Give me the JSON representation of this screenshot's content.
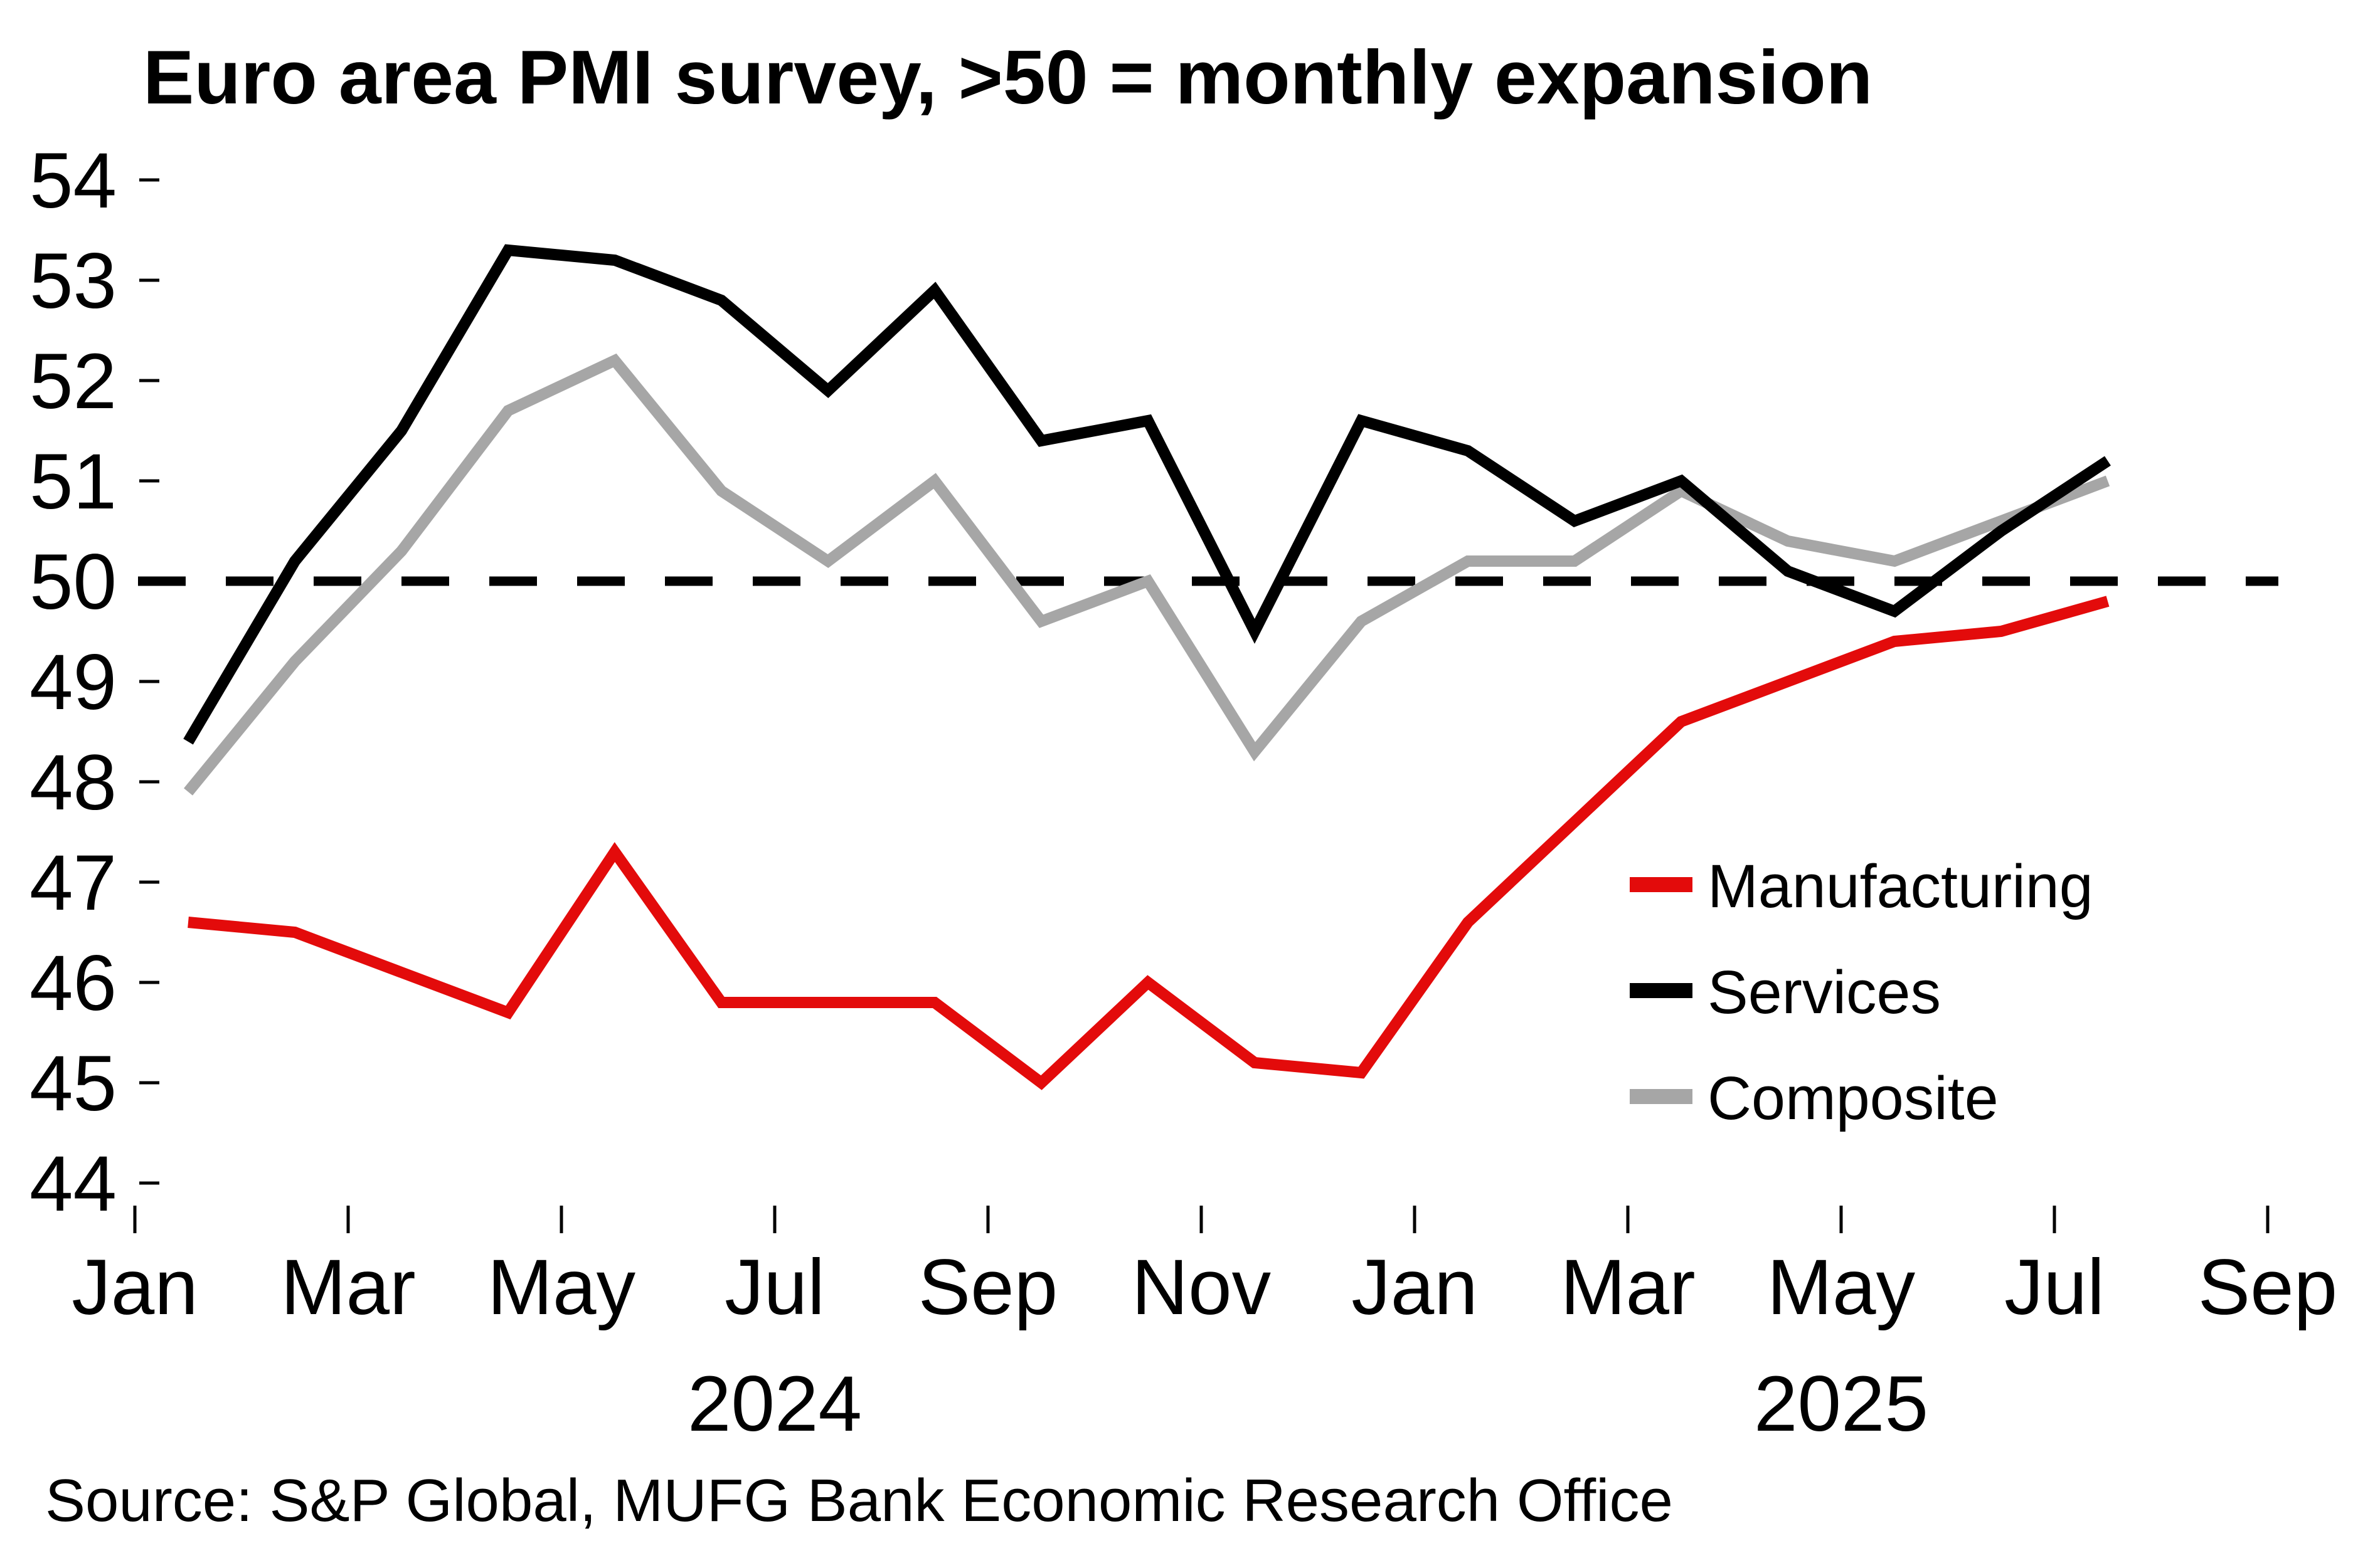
{
  "chart_data": {
    "type": "line",
    "title": "Euro area PMI survey, >50 = monthly expansion",
    "x": [
      "Jan 2024",
      "Feb 2024",
      "Mar 2024",
      "Apr 2024",
      "May 2024",
      "Jun 2024",
      "Jul 2024",
      "Aug 2024",
      "Sep 2024",
      "Oct 2024",
      "Nov 2024",
      "Dec 2024",
      "Jan 2025",
      "Feb 2025",
      "Mar 2025",
      "Apr 2025",
      "May 2025",
      "Jun 2025",
      "Jul 2025"
    ],
    "series": [
      {
        "name": "Manufacturing",
        "color": "#e30b0b",
        "values": [
          46.6,
          46.5,
          46.1,
          45.7,
          47.3,
          45.8,
          45.8,
          45.8,
          45.0,
          46.0,
          45.2,
          45.1,
          46.6,
          47.6,
          48.6,
          49.0,
          49.4,
          49.5,
          49.8
        ]
      },
      {
        "name": "Services",
        "color": "#000000",
        "values": [
          48.4,
          50.2,
          51.5,
          53.3,
          53.2,
          52.8,
          51.9,
          52.9,
          51.4,
          51.6,
          49.5,
          51.6,
          51.3,
          50.6,
          51.0,
          50.1,
          49.7,
          50.5,
          51.2
        ]
      },
      {
        "name": "Composite",
        "color": "#a6a6a6",
        "values": [
          47.9,
          49.2,
          50.3,
          51.7,
          52.2,
          50.9,
          50.2,
          51.0,
          49.6,
          50.0,
          48.3,
          49.6,
          50.2,
          50.2,
          50.9,
          50.4,
          50.2,
          50.6,
          51.0
        ]
      }
    ],
    "ylim": [
      44,
      54
    ],
    "y_tick_labels": [
      "54",
      "53",
      "52",
      "51",
      "50",
      "49",
      "48",
      "47",
      "46",
      "45",
      "44"
    ],
    "x_tick_labels": [
      {
        "label": "Jan",
        "month_index": 0
      },
      {
        "label": "Mar",
        "month_index": 2
      },
      {
        "label": "May",
        "month_index": 4
      },
      {
        "label": "Jul",
        "month_index": 6
      },
      {
        "label": "Sep",
        "month_index": 8
      },
      {
        "label": "Nov",
        "month_index": 10
      },
      {
        "label": "Jan",
        "month_index": 12
      },
      {
        "label": "Mar",
        "month_index": 14
      },
      {
        "label": "May",
        "month_index": 16
      },
      {
        "label": "Jul",
        "month_index": 18
      },
      {
        "label": "Sep",
        "month_index": 20
      }
    ],
    "year_labels": [
      {
        "text": "2024",
        "month_index": 6
      },
      {
        "text": "2025",
        "month_index": 16
      }
    ],
    "reference_line": {
      "value": 50,
      "style": "dashed",
      "color": "#000000"
    },
    "grid": "off",
    "legend_position": "right-middle",
    "legend_entries": [
      "Manufacturing",
      "Services",
      "Composite"
    ]
  },
  "source": {
    "text": "Source: S&P Global, MUFG Bank Economic Research Office"
  }
}
